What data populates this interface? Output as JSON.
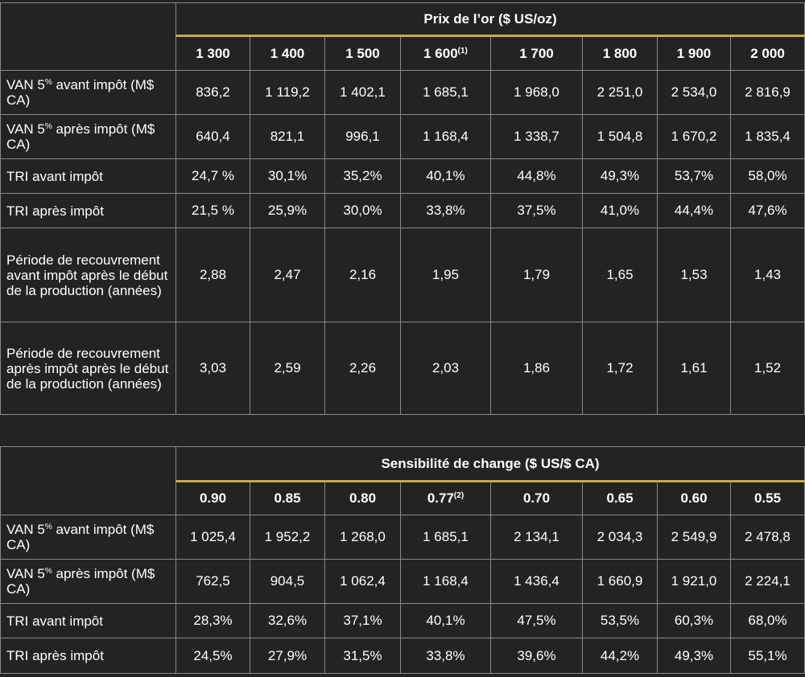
{
  "tables": [
    {
      "title": "Prix de l’or ($ US/oz)",
      "columns": [
        {
          "label": "1 300"
        },
        {
          "label": "1 400"
        },
        {
          "label": "1 500"
        },
        {
          "label": "1 600",
          "note": "(1)"
        },
        {
          "label": "1 700"
        },
        {
          "label": "1 800"
        },
        {
          "label": "1 900"
        },
        {
          "label": "2 000"
        }
      ],
      "rows": [
        {
          "label": {
            "main": "VAN 5",
            "sup": "%",
            "rest": " avant impôt (M$ CA)"
          },
          "values": [
            "836,2",
            "1 119,2",
            "1 402,1",
            "1 685,1",
            "1 968,0",
            "2 251,0",
            "2 534,0",
            "2 816,9"
          ]
        },
        {
          "label": {
            "main": "VAN 5",
            "sup": "%",
            "rest": " après impôt (M$ CA)"
          },
          "values": [
            "640,4",
            "821,1",
            "996,1",
            "1 168,4",
            "1 338,7",
            "1 504,8",
            "1 670,2",
            "1 835,4"
          ]
        },
        {
          "label": {
            "main": "TRI avant impôt"
          },
          "values": [
            "24,7 %",
            "30,1%",
            "35,2%",
            "40,1%",
            "44,8%",
            "49,3%",
            "53,7%",
            "58,0%"
          ]
        },
        {
          "label": {
            "main": "TRI après impôt"
          },
          "values": [
            "21,5 %",
            "25,9%",
            "30,0%",
            "33,8%",
            "37,5%",
            "41,0%",
            "44,4%",
            "47,6%"
          ]
        },
        {
          "label": {
            "main": "Période de recouvrement avant impôt après le début de la production (années)"
          },
          "values": [
            "2,88",
            "2,47",
            "2,16",
            "1,95",
            "1,79",
            "1,65",
            "1,53",
            "1,43"
          ]
        },
        {
          "label": {
            "main": "Période de recouvrement après impôt après le début de la production (années)"
          },
          "values": [
            "3,03",
            "2,59",
            "2,26",
            "2,03",
            "1,86",
            "1,72",
            "1,61",
            "1,52"
          ]
        }
      ]
    },
    {
      "title": "Sensibilité de change ($ US/$ CA)",
      "columns": [
        {
          "label": "0.90"
        },
        {
          "label": "0.85"
        },
        {
          "label": "0.80"
        },
        {
          "label": "0.77",
          "note": "(2)"
        },
        {
          "label": "0.70"
        },
        {
          "label": "0.65"
        },
        {
          "label": "0.60"
        },
        {
          "label": "0.55"
        }
      ],
      "rows": [
        {
          "label": {
            "main": "VAN 5",
            "sup": "%",
            "rest": " avant impôt (M$ CA)"
          },
          "values": [
            "1 025,4",
            "1 952,2",
            "1 268,0",
            "1 685,1",
            "2 134,1",
            "2 034,3",
            "2 549,9",
            "2 478,8"
          ]
        },
        {
          "label": {
            "main": "VAN 5",
            "sup": "%",
            "rest": " après impôt (M$ CA)"
          },
          "values": [
            "762,5",
            "904,5",
            "1 062,4",
            "1 168,4",
            "1 436,4",
            "1 660,9",
            "1 921,0",
            "2 224,1"
          ]
        },
        {
          "label": {
            "main": "TRI avant impôt"
          },
          "values": [
            "28,3%",
            "32,6%",
            "37,1%",
            "40,1%",
            "47,5%",
            "53,5%",
            "60,3%",
            "68,0%"
          ]
        },
        {
          "label": {
            "main": "TRI après impôt"
          },
          "values": [
            "24,5%",
            "27,9%",
            "31,5%",
            "33,8%",
            "39,6%",
            "44,2%",
            "49,3%",
            "55,1%"
          ]
        }
      ]
    }
  ]
}
